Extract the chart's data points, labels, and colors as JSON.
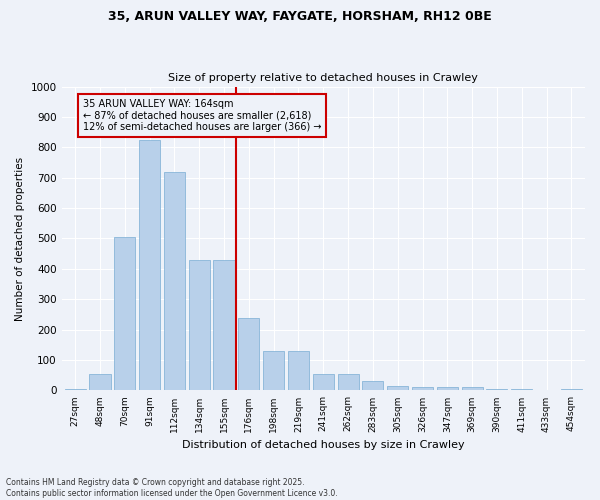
{
  "title1": "35, ARUN VALLEY WAY, FAYGATE, HORSHAM, RH12 0BE",
  "title2": "Size of property relative to detached houses in Crawley",
  "xlabel": "Distribution of detached houses by size in Crawley",
  "ylabel": "Number of detached properties",
  "bin_labels": [
    "27sqm",
    "48sqm",
    "70sqm",
    "91sqm",
    "112sqm",
    "134sqm",
    "155sqm",
    "176sqm",
    "198sqm",
    "219sqm",
    "241sqm",
    "262sqm",
    "283sqm",
    "305sqm",
    "326sqm",
    "347sqm",
    "369sqm",
    "390sqm",
    "411sqm",
    "433sqm",
    "454sqm"
  ],
  "bar_heights": [
    5,
    55,
    505,
    825,
    720,
    430,
    430,
    240,
    130,
    130,
    55,
    55,
    30,
    15,
    10,
    10,
    10,
    5,
    5,
    0,
    5
  ],
  "bar_color": "#b8d0ea",
  "bar_edge_color": "#7aadd4",
  "vline_color": "#cc0000",
  "annotation_title": "35 ARUN VALLEY WAY: 164sqm",
  "annotation_line1": "← 87% of detached houses are smaller (2,618)",
  "annotation_line2": "12% of semi-detached houses are larger (366) →",
  "annotation_box_color": "#cc0000",
  "background_color": "#eef2f9",
  "footer1": "Contains HM Land Registry data © Crown copyright and database right 2025.",
  "footer2": "Contains public sector information licensed under the Open Government Licence v3.0.",
  "ylim": [
    0,
    1000
  ],
  "yticks": [
    0,
    100,
    200,
    300,
    400,
    500,
    600,
    700,
    800,
    900,
    1000
  ]
}
